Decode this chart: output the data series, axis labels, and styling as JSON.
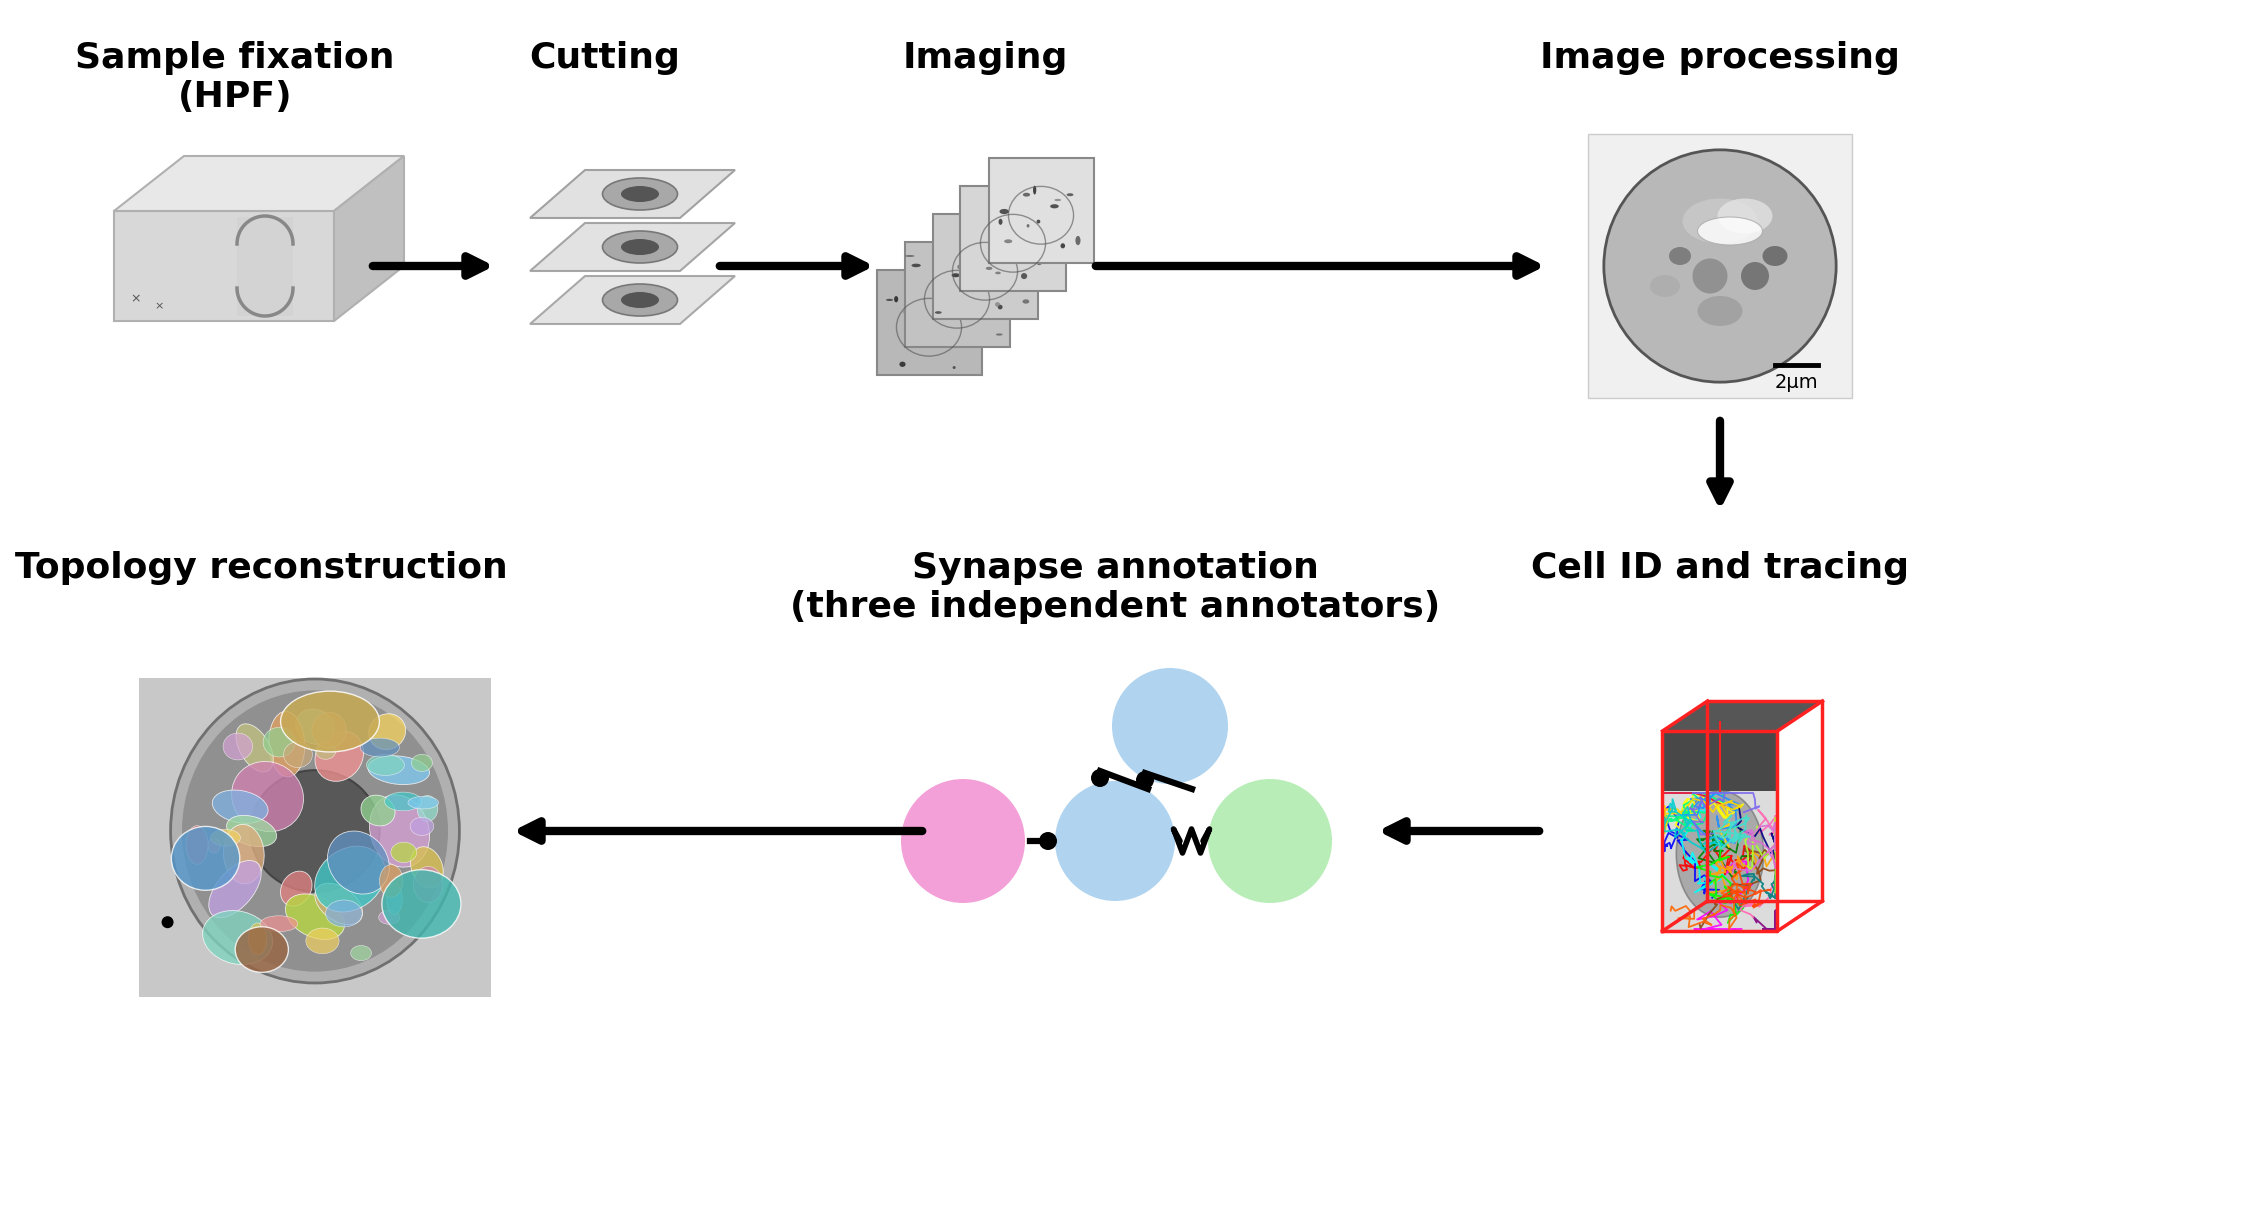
{
  "background_color": "#ffffff",
  "figsize": [
    22.5,
    12.21
  ],
  "dpi": 100,
  "labels": {
    "sample_fixation": "Sample fixation\n(HPF)",
    "cutting": "Cutting",
    "imaging": "Imaging",
    "image_processing": "Image processing",
    "cell_id": "Cell ID and tracing",
    "synapse_annotation": "Synapse annotation\n(three independent annotators)",
    "topology": "Topology reconstruction"
  },
  "label_fontsize": 26,
  "scale_bar": "2μm",
  "circle_colors": {
    "pink": "#f4a0d8",
    "light_blue": "#b0d4f0",
    "light_green": "#b8edb8"
  },
  "arrow_color": "#000000"
}
